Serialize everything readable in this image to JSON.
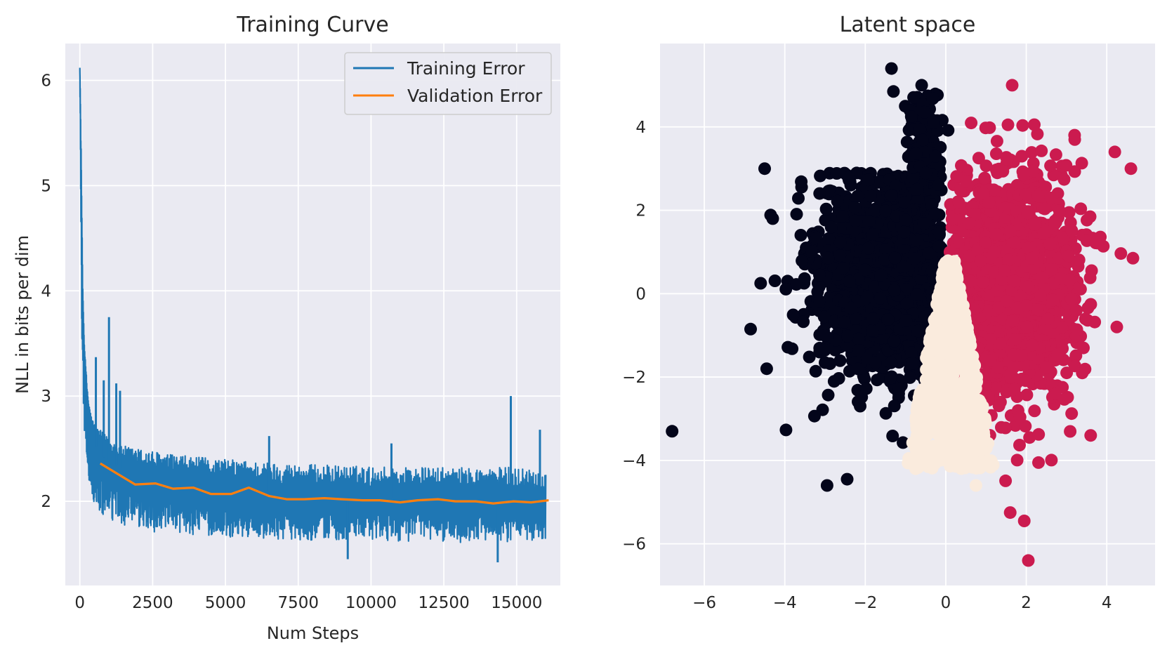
{
  "chart_data": [
    {
      "type": "line",
      "title": "Training Curve",
      "xlabel": "Num Steps",
      "ylabel": "NLL in bits per dim",
      "xlim": [
        -500,
        16500
      ],
      "ylim": [
        1.2,
        6.35
      ],
      "xticks": [
        0,
        2500,
        5000,
        7500,
        10000,
        12500,
        15000
      ],
      "xtick_labels": [
        "0",
        "2500",
        "5000",
        "7500",
        "10000",
        "12500",
        "15000"
      ],
      "yticks": [
        2,
        3,
        4,
        5,
        6
      ],
      "ytick_labels": [
        "2",
        "3",
        "4",
        "5",
        "6"
      ],
      "grid": true,
      "legend": "top-right",
      "series": [
        {
          "name": "Training Error",
          "color": "#1f77b4",
          "x": [
            0,
            50,
            100,
            150,
            200,
            250,
            300,
            400,
            500,
            600,
            800,
            1000,
            1300,
            1600,
            2000,
            2500,
            3000,
            4000,
            5000,
            6000,
            7000,
            8000,
            9000,
            10000,
            11000,
            12000,
            13000,
            14000,
            15000,
            16000
          ],
          "y": [
            6.12,
            5.0,
            4.0,
            3.5,
            3.2,
            3.0,
            2.85,
            2.65,
            2.55,
            2.48,
            2.42,
            2.38,
            2.33,
            2.28,
            2.22,
            2.18,
            2.15,
            2.12,
            2.1,
            2.08,
            2.06,
            2.05,
            2.04,
            2.03,
            2.03,
            2.02,
            2.02,
            2.01,
            2.01,
            2.0
          ],
          "band_low": [
            6.12,
            4.0,
            3.0,
            2.7,
            2.45,
            2.3,
            2.2,
            2.05,
            1.95,
            1.9,
            1.85,
            1.8,
            1.78,
            1.76,
            1.73,
            1.71,
            1.7,
            1.68,
            1.66,
            1.65,
            1.64,
            1.63,
            1.63,
            1.62,
            1.62,
            1.62,
            1.61,
            1.61,
            1.61,
            1.65
          ],
          "band_high": [
            6.12,
            5.2,
            4.0,
            3.5,
            3.3,
            3.1,
            2.95,
            2.8,
            2.75,
            2.7,
            2.65,
            2.6,
            2.55,
            2.52,
            2.5,
            2.48,
            2.45,
            2.42,
            2.4,
            2.38,
            2.36,
            2.35,
            2.34,
            2.33,
            2.33,
            2.32,
            2.32,
            2.32,
            2.33,
            2.3
          ],
          "spikes": [
            {
              "x": 1000,
              "y": 3.75
            },
            {
              "x": 550,
              "y": 3.37
            },
            {
              "x": 820,
              "y": 3.15
            },
            {
              "x": 1250,
              "y": 3.12
            },
            {
              "x": 1380,
              "y": 3.05
            },
            {
              "x": 14800,
              "y": 3.0
            },
            {
              "x": 15800,
              "y": 2.68
            },
            {
              "x": 6500,
              "y": 2.62
            },
            {
              "x": 10700,
              "y": 2.55
            },
            {
              "x": 14350,
              "y": 1.42
            },
            {
              "x": 9200,
              "y": 1.45
            }
          ]
        },
        {
          "name": "Validation Error",
          "color": "#ff7f0e",
          "x": [
            700,
            1300,
            1900,
            2600,
            3200,
            3900,
            4500,
            5200,
            5800,
            6500,
            7100,
            7700,
            8400,
            9000,
            9700,
            10300,
            11000,
            11600,
            12300,
            12900,
            13600,
            14200,
            14900,
            15500,
            16100
          ],
          "y": [
            2.36,
            2.26,
            2.16,
            2.17,
            2.12,
            2.13,
            2.07,
            2.07,
            2.13,
            2.05,
            2.02,
            2.02,
            2.03,
            2.02,
            2.01,
            2.01,
            1.99,
            2.01,
            2.02,
            2.0,
            2.0,
            1.98,
            2.0,
            1.99,
            2.01
          ]
        }
      ]
    },
    {
      "type": "scatter",
      "title": "Latent space",
      "xlim": [
        -7.1,
        5.2
      ],
      "ylim": [
        -7.0,
        6.0
      ],
      "xticks": [
        -6,
        -4,
        -2,
        0,
        2,
        4
      ],
      "xtick_labels": [
        "−6",
        "−4",
        "−2",
        "0",
        "2",
        "4"
      ],
      "yticks": [
        -6,
        -4,
        -2,
        0,
        2,
        4
      ],
      "ytick_labels": [
        "−6",
        "−4",
        "−2",
        "0",
        "2",
        "4"
      ],
      "grid": true,
      "clusters": [
        {
          "color": "#03051a",
          "center": [
            -1.5,
            0.5
          ],
          "spread": [
            0.9,
            1.3
          ]
        },
        {
          "color": "#cb1b4f",
          "center": [
            1.6,
            0.2
          ],
          "spread": [
            0.85,
            1.4
          ]
        },
        {
          "color": "#faebdd",
          "center": [
            0.3,
            -1.8
          ],
          "spread": [
            0.5,
            1.2
          ]
        }
      ],
      "outliers": [
        {
          "x": -6.8,
          "y": -3.3,
          "color": "#03051a"
        },
        {
          "x": -4.5,
          "y": 3.0,
          "color": "#03051a"
        },
        {
          "x": -4.6,
          "y": 0.25,
          "color": "#03051a"
        },
        {
          "x": -4.85,
          "y": -0.85,
          "color": "#03051a"
        },
        {
          "x": -4.45,
          "y": -1.8,
          "color": "#03051a"
        },
        {
          "x": -4.3,
          "y": 1.8,
          "color": "#03051a"
        },
        {
          "x": -1.35,
          "y": 5.4,
          "color": "#03051a"
        },
        {
          "x": -0.6,
          "y": 5.0,
          "color": "#03051a"
        },
        {
          "x": -1.3,
          "y": 4.85,
          "color": "#03051a"
        },
        {
          "x": -2.95,
          "y": -4.6,
          "color": "#03051a"
        },
        {
          "x": -2.45,
          "y": -4.45,
          "color": "#03051a"
        },
        {
          "x": 1.65,
          "y": 5.0,
          "color": "#cb1b4f"
        },
        {
          "x": 4.2,
          "y": 3.4,
          "color": "#cb1b4f"
        },
        {
          "x": 4.6,
          "y": 3.0,
          "color": "#cb1b4f"
        },
        {
          "x": 4.65,
          "y": 0.85,
          "color": "#cb1b4f"
        },
        {
          "x": 4.25,
          "y": -0.8,
          "color": "#cb1b4f"
        },
        {
          "x": 3.6,
          "y": -3.4,
          "color": "#cb1b4f"
        },
        {
          "x": 2.05,
          "y": -6.4,
          "color": "#cb1b4f"
        },
        {
          "x": 1.95,
          "y": -5.45,
          "color": "#cb1b4f"
        },
        {
          "x": 1.6,
          "y": -5.25,
          "color": "#cb1b4f"
        },
        {
          "x": 3.2,
          "y": 3.8,
          "color": "#cb1b4f"
        },
        {
          "x": 0.75,
          "y": -4.6,
          "color": "#faebdd"
        },
        {
          "x": -0.75,
          "y": -4.2,
          "color": "#faebdd"
        }
      ]
    }
  ]
}
